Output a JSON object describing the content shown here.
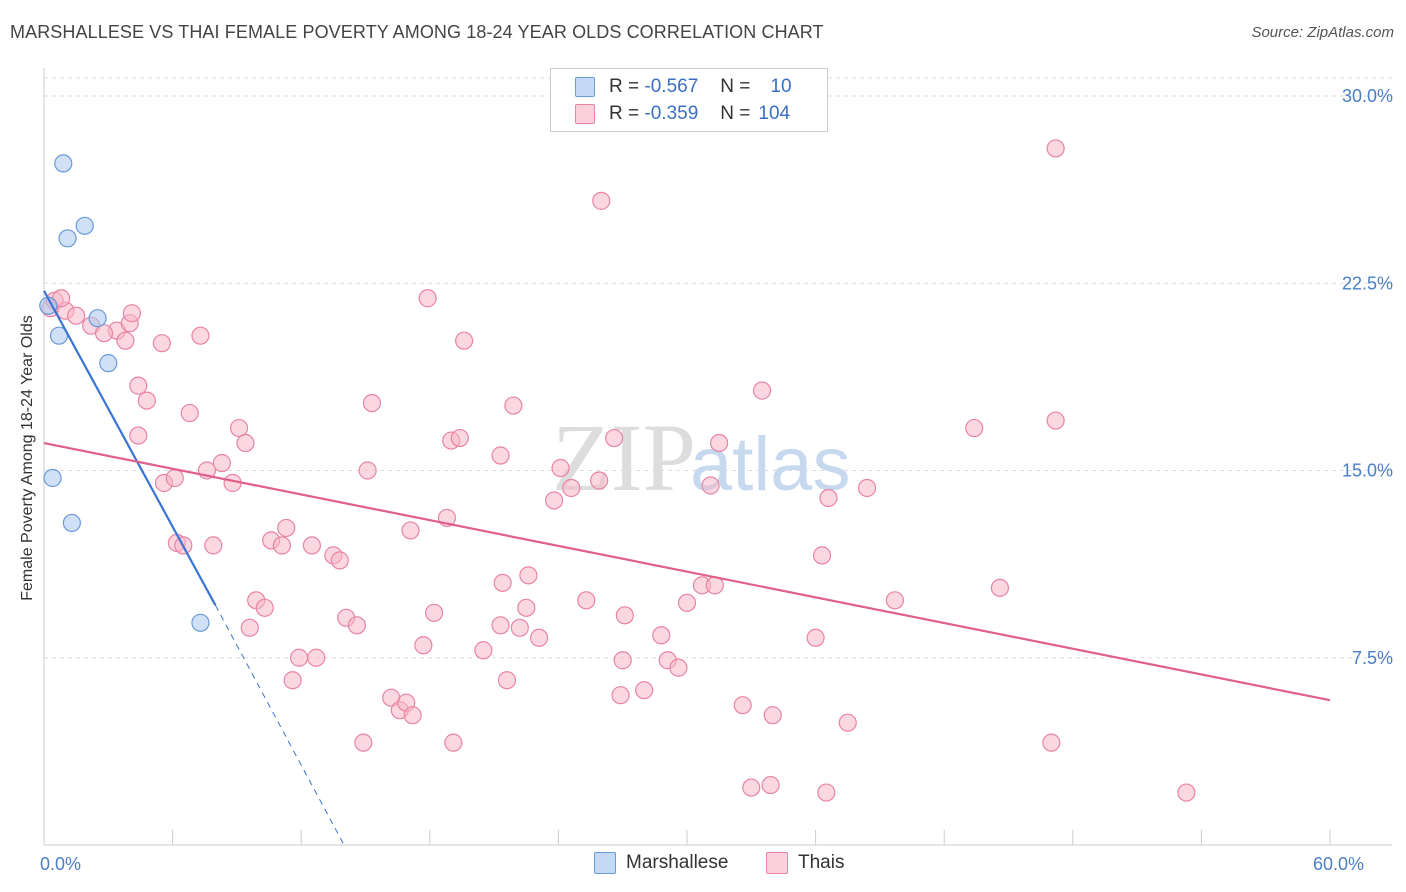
{
  "title": "MARSHALLESE VS THAI FEMALE POVERTY AMONG 18-24 YEAR OLDS CORRELATION CHART",
  "source": "Source: ZipAtlas.com",
  "watermark": {
    "zip": "ZIP",
    "atlas": "atlas"
  },
  "legend": {
    "rows": [
      {
        "r_label": "R =",
        "r_value": "-0.567",
        "n_label": "N =",
        "n_value": "10",
        "color": "#a9c8f0",
        "border": "#6a9ad8"
      },
      {
        "r_label": "R =",
        "r_value": "-0.359",
        "n_label": "N =",
        "n_value": "104",
        "color": "#f7b6c9",
        "border": "#e884a4"
      }
    ]
  },
  "bottom_legend": {
    "series1": "Marshallese",
    "series2": "Thais"
  },
  "chart_data": {
    "type": "scatter",
    "ylabel": "Female Poverty Among 18-24 Year Olds",
    "xlim": [
      0,
      60
    ],
    "ylim": [
      0,
      30
    ],
    "x_ticks": [
      {
        "value": 0,
        "label": "0.0%"
      },
      {
        "value": 60,
        "label": "60.0%"
      }
    ],
    "y_ticks": [
      {
        "value": 7.5,
        "label": "7.5%"
      },
      {
        "value": 15,
        "label": "15.0%"
      },
      {
        "value": 22.5,
        "label": "22.5%"
      },
      {
        "value": 30,
        "label": "30.0%"
      }
    ],
    "grid": true,
    "series": [
      {
        "name": "Marshallese",
        "color": "#a9c8f0",
        "stroke": "#6a9ad8",
        "line_color": "#3a74d4",
        "trend": {
          "x1": 0,
          "y1": 22.2,
          "x2": 8,
          "y2": 9.6,
          "dash_x2": 14,
          "dash_y2": 0
        },
        "points": [
          [
            0.9,
            27.3
          ],
          [
            1.9,
            24.8
          ],
          [
            1.1,
            24.3
          ],
          [
            2.5,
            21.1
          ],
          [
            0.7,
            20.4
          ],
          [
            3.0,
            19.3
          ],
          [
            0.4,
            14.7
          ],
          [
            1.3,
            12.9
          ],
          [
            7.3,
            8.9
          ],
          [
            0.2,
            21.6
          ]
        ]
      },
      {
        "name": "Thais",
        "color": "#f7b6c9",
        "stroke": "#e884a4",
        "line_color": "#e0608a",
        "trend": {
          "x1": 0,
          "y1": 16.1,
          "x2": 60,
          "y2": 5.8
        },
        "points": [
          [
            0.3,
            21.5
          ],
          [
            0.5,
            21.8
          ],
          [
            1.0,
            21.4
          ],
          [
            1.5,
            21.2
          ],
          [
            0.8,
            21.9
          ],
          [
            2.2,
            20.8
          ],
          [
            3.4,
            20.6
          ],
          [
            4.0,
            20.9
          ],
          [
            2.8,
            20.5
          ],
          [
            3.8,
            20.2
          ],
          [
            4.1,
            21.3
          ],
          [
            5.5,
            20.1
          ],
          [
            7.3,
            20.4
          ],
          [
            4.4,
            18.4
          ],
          [
            4.8,
            17.8
          ],
          [
            6.8,
            17.3
          ],
          [
            9.1,
            16.7
          ],
          [
            9.4,
            16.1
          ],
          [
            4.4,
            16.4
          ],
          [
            5.6,
            14.5
          ],
          [
            6.1,
            14.7
          ],
          [
            8.3,
            15.3
          ],
          [
            7.6,
            15.0
          ],
          [
            8.8,
            14.5
          ],
          [
            6.2,
            12.1
          ],
          [
            6.5,
            12.0
          ],
          [
            7.9,
            12.0
          ],
          [
            10.6,
            12.2
          ],
          [
            11.1,
            12.0
          ],
          [
            11.3,
            12.7
          ],
          [
            12.5,
            12.0
          ],
          [
            13.5,
            11.6
          ],
          [
            13.8,
            11.4
          ],
          [
            9.9,
            9.8
          ],
          [
            10.3,
            9.5
          ],
          [
            9.6,
            8.7
          ],
          [
            11.9,
            7.5
          ],
          [
            12.7,
            7.5
          ],
          [
            11.6,
            6.6
          ],
          [
            14.1,
            9.1
          ],
          [
            14.6,
            8.8
          ],
          [
            15.3,
            17.7
          ],
          [
            15.1,
            15.0
          ],
          [
            16.2,
            5.9
          ],
          [
            16.6,
            5.4
          ],
          [
            16.9,
            5.7
          ],
          [
            17.7,
            8.0
          ],
          [
            17.2,
            5.2
          ],
          [
            14.9,
            4.1
          ],
          [
            17.9,
            21.9
          ],
          [
            19.6,
            20.2
          ],
          [
            19.0,
            16.2
          ],
          [
            19.4,
            16.3
          ],
          [
            21.9,
            17.6
          ],
          [
            21.3,
            15.6
          ],
          [
            22.6,
            10.8
          ],
          [
            21.4,
            10.5
          ],
          [
            21.3,
            8.8
          ],
          [
            20.5,
            7.8
          ],
          [
            21.6,
            6.6
          ],
          [
            18.8,
            13.1
          ],
          [
            17.1,
            12.6
          ],
          [
            22.5,
            9.5
          ],
          [
            22.2,
            8.7
          ],
          [
            23.1,
            8.3
          ],
          [
            19.1,
            4.1
          ],
          [
            18.2,
            9.3
          ],
          [
            24.1,
            15.1
          ],
          [
            26.0,
            25.8
          ],
          [
            26.6,
            16.3
          ],
          [
            24.6,
            14.3
          ],
          [
            25.9,
            14.6
          ],
          [
            23.8,
            13.8
          ],
          [
            25.3,
            9.8
          ],
          [
            27.1,
            9.2
          ],
          [
            27.0,
            7.4
          ],
          [
            26.9,
            6.0
          ],
          [
            28.0,
            6.2
          ],
          [
            29.1,
            7.4
          ],
          [
            28.8,
            8.4
          ],
          [
            29.6,
            7.1
          ],
          [
            30.0,
            9.7
          ],
          [
            30.7,
            10.4
          ],
          [
            31.3,
            10.4
          ],
          [
            31.1,
            14.4
          ],
          [
            31.5,
            16.1
          ],
          [
            32.6,
            5.6
          ],
          [
            33.5,
            18.2
          ],
          [
            33.0,
            2.3
          ],
          [
            33.9,
            2.4
          ],
          [
            34.0,
            5.2
          ],
          [
            36.0,
            8.3
          ],
          [
            36.3,
            11.6
          ],
          [
            36.6,
            13.9
          ],
          [
            36.5,
            2.1
          ],
          [
            37.5,
            4.9
          ],
          [
            38.4,
            14.3
          ],
          [
            39.7,
            9.8
          ],
          [
            43.4,
            16.7
          ],
          [
            44.6,
            10.3
          ],
          [
            47.2,
            17.0
          ],
          [
            47.0,
            4.1
          ],
          [
            47.2,
            27.9
          ],
          [
            53.3,
            2.1
          ]
        ]
      }
    ]
  }
}
